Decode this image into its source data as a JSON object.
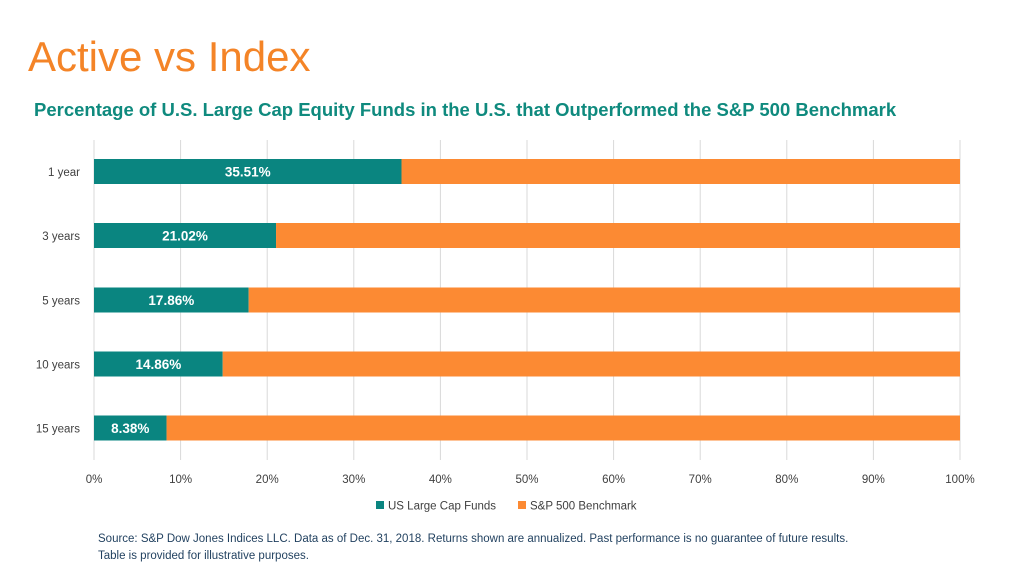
{
  "page": {
    "title": "Active vs Index",
    "source_line1": "Source: S&P Dow Jones Indices LLC. Data as of Dec. 31, 2018. Returns shown are annualized. Past performance is no guarantee of future results.",
    "source_line2": "Table is provided for illustrative purposes."
  },
  "colors": {
    "title": "#F48427",
    "chart_title": "#0F8A7E",
    "series_active": "#0A8580",
    "series_benchmark": "#FC8A33",
    "gridline": "#D9D9D9",
    "axis_text": "#404040",
    "source_text": "#1F3F5E"
  },
  "chart_data": {
    "type": "bar",
    "orientation": "horizontal",
    "stacked": "percent",
    "title": "Percentage of U.S. Large Cap Equity Funds in the U.S. that Outperformed the S&P 500 Benchmark",
    "categories": [
      "1 year",
      "3 years",
      "5 years",
      "10 years",
      "15 years"
    ],
    "series": [
      {
        "name": "US Large Cap Funds",
        "values": [
          35.51,
          21.02,
          17.86,
          14.86,
          8.38
        ],
        "labels": [
          "35.51%",
          "21.02%",
          "17.86%",
          "14.86%",
          "8.38%"
        ]
      },
      {
        "name": "S&P 500 Benchmark",
        "values": [
          64.49,
          78.98,
          82.14,
          85.14,
          91.62
        ]
      }
    ],
    "x_ticks": [
      "0%",
      "10%",
      "20%",
      "30%",
      "40%",
      "50%",
      "60%",
      "70%",
      "80%",
      "90%",
      "100%"
    ],
    "xlim": [
      0,
      100
    ],
    "grid": true,
    "legend_position": "bottom"
  }
}
